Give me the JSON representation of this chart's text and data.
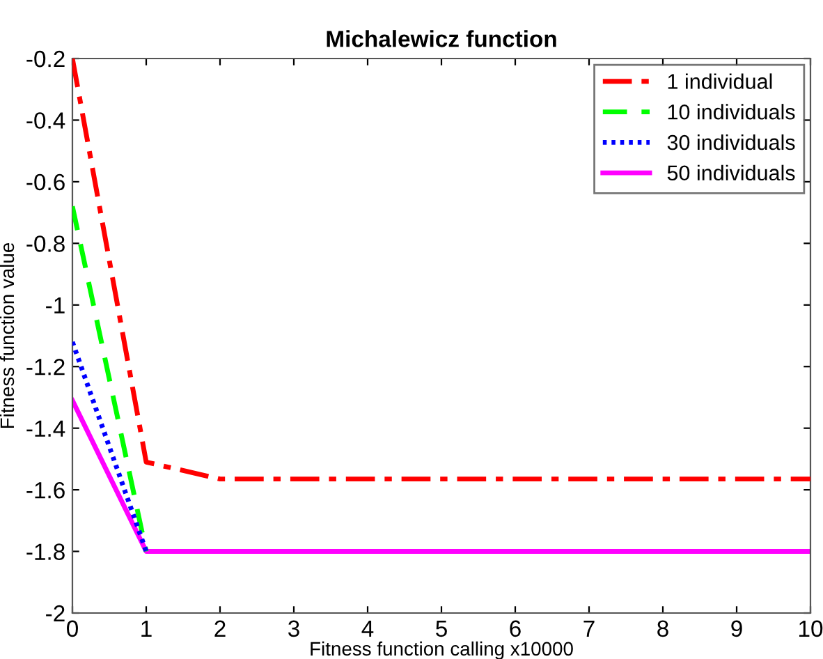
{
  "chart_data": {
    "type": "line",
    "title": "Michalewicz function",
    "xlabel": "Fitness function calling x10000",
    "ylabel": "Fitness function value",
    "x": [
      0,
      1,
      2,
      3,
      4,
      5,
      6,
      7,
      8,
      9,
      10
    ],
    "series": [
      {
        "name": "1 individual",
        "color": "#ff0000",
        "line_style": "dashdot",
        "values": [
          -0.2,
          -1.51,
          -1.565,
          -1.565,
          -1.565,
          -1.565,
          -1.565,
          -1.565,
          -1.565,
          -1.565,
          -1.565
        ]
      },
      {
        "name": "10 individuals",
        "color": "#00ff00",
        "line_style": "dashed",
        "values": [
          -0.68,
          -1.8,
          null,
          null,
          null,
          null,
          null,
          null,
          null,
          null,
          null
        ]
      },
      {
        "name": "30 individuals",
        "color": "#0000ff",
        "line_style": "dotted",
        "values": [
          -1.12,
          -1.8,
          null,
          null,
          null,
          null,
          null,
          null,
          null,
          null,
          null
        ]
      },
      {
        "name": "50 individuals",
        "color": "#ff00ff",
        "line_style": "solid",
        "values": [
          -1.31,
          -1.8,
          -1.8,
          -1.8,
          -1.8,
          -1.8,
          -1.8,
          -1.8,
          -1.8,
          -1.8,
          -1.8
        ]
      }
    ],
    "xlim": [
      0,
      10
    ],
    "xticks": [
      0,
      1,
      2,
      3,
      4,
      5,
      6,
      7,
      8,
      9,
      10
    ],
    "ylim": [
      -2,
      -0.2
    ],
    "yticks": [
      -2,
      -1.8,
      -1.6,
      -1.4,
      -1.2,
      -1,
      -0.8,
      -0.6,
      -0.4,
      -0.2
    ],
    "grid": false,
    "legend": "top right",
    "marker": "none"
  }
}
